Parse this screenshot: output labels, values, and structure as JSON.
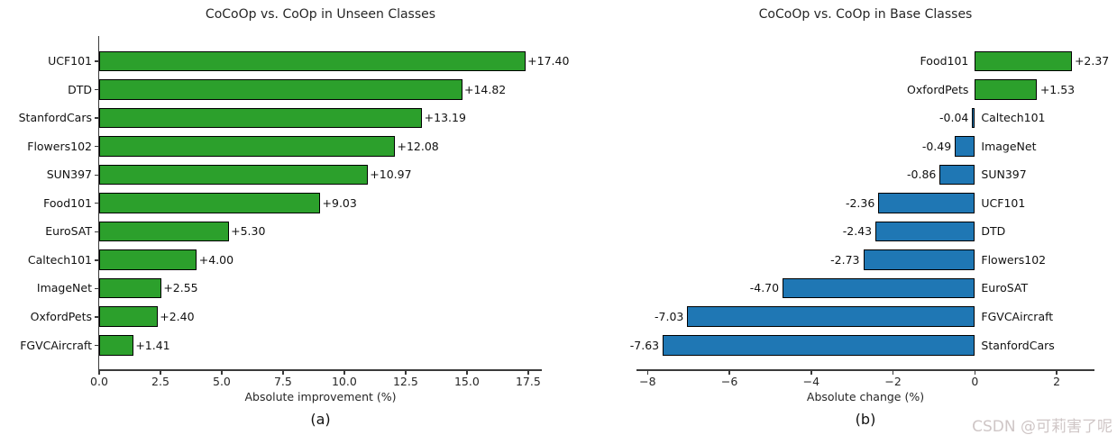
{
  "figure": {
    "background": "#ffffff"
  },
  "watermark": {
    "text": "CSDN @可莉害了呢",
    "color": "#cfc6c6"
  },
  "chart_data": [
    {
      "type": "bar",
      "orientation": "horizontal",
      "title": "CoCoOp vs. CoOp in Unseen Classes",
      "xlabel": "Absolute improvement (%)",
      "caption": "(a)",
      "xlim": [
        0,
        18.02
      ],
      "grid": false,
      "legend": null,
      "xticks": [
        0,
        2.5,
        5,
        7.5,
        10,
        12.5,
        15,
        17.5
      ],
      "xtick_labels": [
        "0.0",
        "2.5",
        "5.0",
        "7.5",
        "10.0",
        "12.5",
        "15.0",
        "17.5"
      ],
      "bar_color": "#2ca02c",
      "bar_edge_color": "#000000",
      "categories": [
        "UCF101",
        "DTD",
        "StanfordCars",
        "Flowers102",
        "SUN397",
        "Food101",
        "EuroSAT",
        "Caltech101",
        "ImageNet",
        "OxfordPets",
        "FGVCAircraft"
      ],
      "values": [
        17.4,
        14.82,
        13.19,
        12.08,
        10.97,
        9.03,
        5.3,
        4.0,
        2.55,
        2.4,
        1.41
      ],
      "value_labels": [
        "+17.40",
        "+14.82",
        "+13.19",
        "+12.08",
        "+10.97",
        "+9.03",
        "+5.30",
        "+4.00",
        "+2.55",
        "+2.40",
        "+1.41"
      ]
    },
    {
      "type": "bar",
      "orientation": "horizontal",
      "title": "CoCoOp vs. CoOp in Base Classes",
      "xlabel": "Absolute change (%)",
      "caption": "(b)",
      "xlim": [
        -8.25,
        2.9
      ],
      "grid": false,
      "legend": null,
      "xticks": [
        -8,
        -6,
        -4,
        -2,
        0,
        2
      ],
      "xtick_labels": [
        "−8",
        "−6",
        "−4",
        "−2",
        "0",
        "2"
      ],
      "positive_color": "#2ca02c",
      "negative_color": "#1f77b4",
      "bar_edge_color": "#000000",
      "categories": [
        "Food101",
        "OxfordPets",
        "Caltech101",
        "ImageNet",
        "SUN397",
        "UCF101",
        "DTD",
        "Flowers102",
        "EuroSAT",
        "FGVCAircraft",
        "StanfordCars"
      ],
      "values": [
        2.37,
        1.53,
        -0.04,
        -0.49,
        -0.86,
        -2.36,
        -2.43,
        -2.73,
        -4.7,
        -7.03,
        -7.63
      ],
      "value_labels": [
        "+2.37",
        "+1.53",
        "-0.04",
        "-0.49",
        "-0.86",
        "-2.36",
        "-2.43",
        "-2.73",
        "-4.70",
        "-7.03",
        "-7.63"
      ]
    }
  ]
}
